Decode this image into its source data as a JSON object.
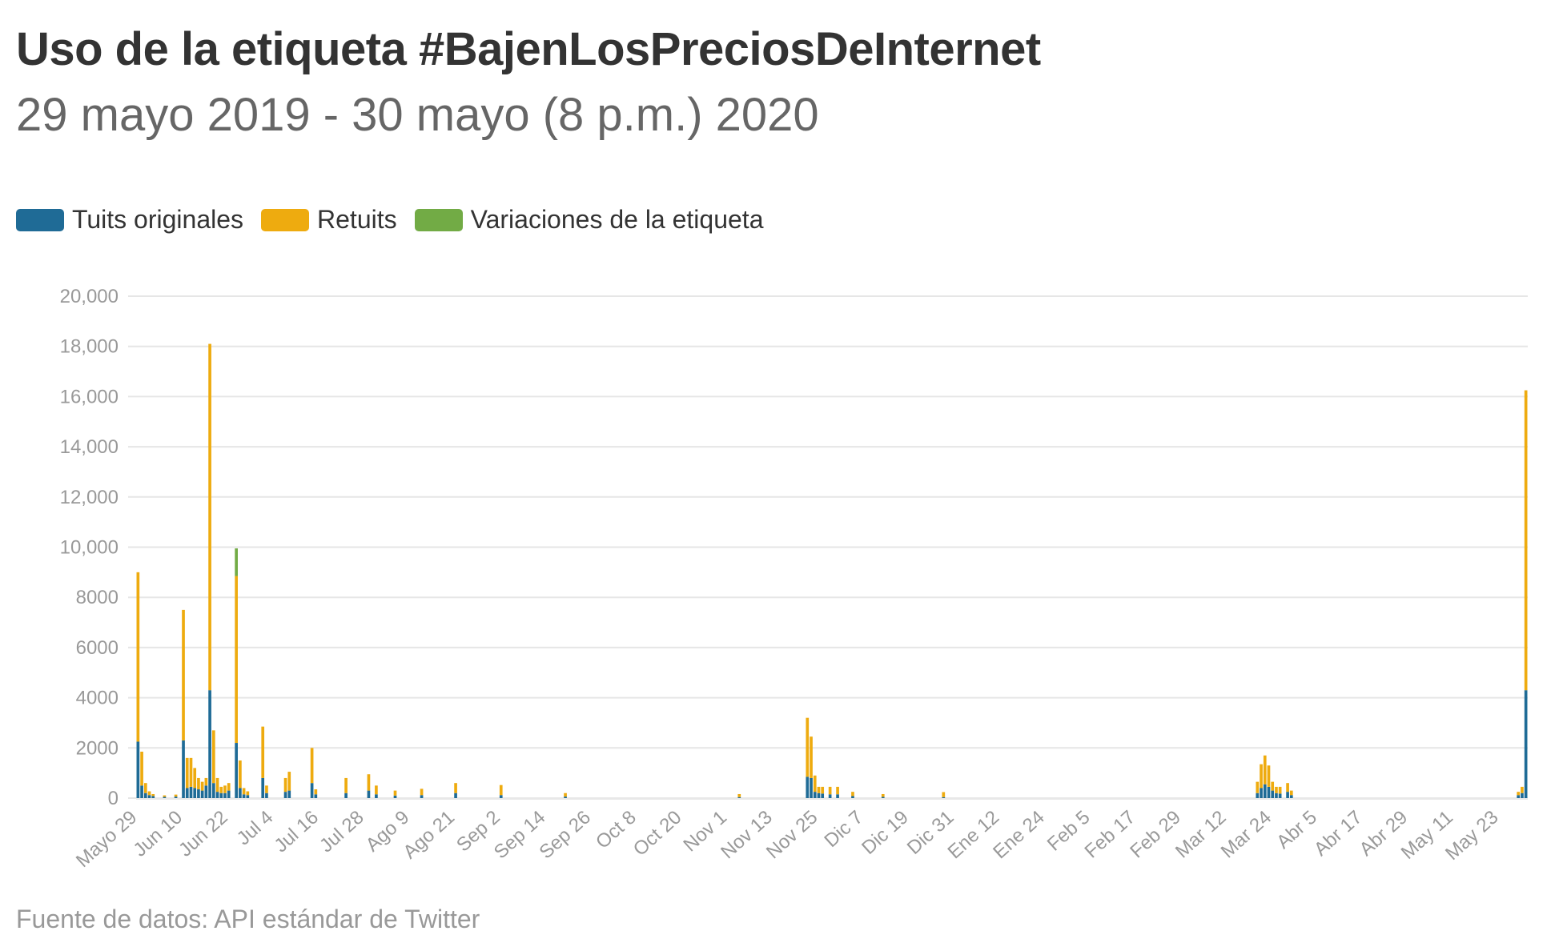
{
  "title": "Uso de la etiqueta #BajenLosPreciosDeInternet",
  "subtitle": "29 mayo 2019 - 30 mayo (8 p.m.) 2020",
  "source": "Fuente de datos: API estándar de Twitter",
  "colors": {
    "originales": "#1f6b96",
    "retuits": "#eeab0f",
    "variaciones": "#72ab45",
    "grid": "#e6e6e6",
    "tick_text": "#999999"
  },
  "chart_data": {
    "type": "bar",
    "stacked": true,
    "title": "Uso de la etiqueta #BajenLosPreciosDeInternet",
    "subtitle": "29 mayo 2019 - 30 mayo (8 p.m.) 2020",
    "legend_position": "top-left",
    "grid": true,
    "ylim": [
      0,
      20000
    ],
    "y_ticks": [
      "0",
      "2000",
      "4000",
      "6000",
      "8000",
      "10,000",
      "12,000",
      "14,000",
      "16,000",
      "18,000",
      "20,000"
    ],
    "y_tick_values": [
      0,
      2000,
      4000,
      6000,
      8000,
      10000,
      12000,
      14000,
      16000,
      18000,
      20000
    ],
    "x_start": "2019-05-29",
    "x_end": "2020-05-30",
    "x_ticks": [
      "Mayo 29",
      "Jun 10",
      "Jun 22",
      "Jul 4",
      "Jul 16",
      "Jul 28",
      "Ago 9",
      "Ago 21",
      "Sep 2",
      "Sep 14",
      "Sep 26",
      "Oct 8",
      "Oct 20",
      "Nov 1",
      "Nov 13",
      "Nov 25",
      "Dic 7",
      "Dic 19",
      "Dic 31",
      "Ene 12",
      "Ene 24",
      "Feb 5",
      "Feb 17",
      "Feb 29",
      "Mar 12",
      "Mar 24",
      "Abr 5",
      "Abr 17",
      "Abr 29",
      "May 11",
      "May 23"
    ],
    "series": [
      {
        "name": "Tuits originales",
        "color": "#1f6b96",
        "values": [
          [
            "2019-05-29",
            2250
          ],
          [
            "2019-05-30",
            500
          ],
          [
            "2019-05-31",
            200
          ],
          [
            "2019-06-01",
            120
          ],
          [
            "2019-06-02",
            80
          ],
          [
            "2019-06-05",
            50
          ],
          [
            "2019-06-08",
            60
          ],
          [
            "2019-06-10",
            2300
          ],
          [
            "2019-06-11",
            400
          ],
          [
            "2019-06-12",
            450
          ],
          [
            "2019-06-13",
            400
          ],
          [
            "2019-06-14",
            350
          ],
          [
            "2019-06-15",
            300
          ],
          [
            "2019-06-16",
            500
          ],
          [
            "2019-06-17",
            4300
          ],
          [
            "2019-06-18",
            600
          ],
          [
            "2019-06-19",
            250
          ],
          [
            "2019-06-20",
            200
          ],
          [
            "2019-06-21",
            200
          ],
          [
            "2019-06-22",
            300
          ],
          [
            "2019-06-24",
            2200
          ],
          [
            "2019-06-25",
            400
          ],
          [
            "2019-06-26",
            150
          ],
          [
            "2019-06-27",
            120
          ],
          [
            "2019-07-01",
            800
          ],
          [
            "2019-07-02",
            200
          ],
          [
            "2019-07-07",
            250
          ],
          [
            "2019-07-08",
            300
          ],
          [
            "2019-07-14",
            600
          ],
          [
            "2019-07-15",
            150
          ],
          [
            "2019-07-23",
            200
          ],
          [
            "2019-07-29",
            300
          ],
          [
            "2019-07-31",
            150
          ],
          [
            "2019-08-05",
            100
          ],
          [
            "2019-08-12",
            120
          ],
          [
            "2019-08-21",
            200
          ],
          [
            "2019-09-02",
            120
          ],
          [
            "2019-09-19",
            60
          ],
          [
            "2019-11-04",
            40
          ],
          [
            "2019-11-22",
            850
          ],
          [
            "2019-11-23",
            800
          ],
          [
            "2019-11-24",
            250
          ],
          [
            "2019-11-25",
            200
          ],
          [
            "2019-11-26",
            180
          ],
          [
            "2019-11-28",
            150
          ],
          [
            "2019-11-30",
            150
          ],
          [
            "2019-12-04",
            80
          ],
          [
            "2019-12-12",
            50
          ],
          [
            "2019-12-28",
            40
          ],
          [
            "2020-03-20",
            200
          ],
          [
            "2020-03-21",
            400
          ],
          [
            "2020-03-22",
            550
          ],
          [
            "2020-03-23",
            450
          ],
          [
            "2020-03-24",
            300
          ],
          [
            "2020-03-25",
            200
          ],
          [
            "2020-03-26",
            180
          ],
          [
            "2020-03-28",
            250
          ],
          [
            "2020-03-29",
            120
          ],
          [
            "2020-05-28",
            120
          ],
          [
            "2020-05-29",
            200
          ],
          [
            "2020-05-30",
            4300
          ]
        ]
      },
      {
        "name": "Retuits",
        "color": "#eeab0f",
        "values": [
          [
            "2019-05-29",
            6750
          ],
          [
            "2019-05-30",
            1350
          ],
          [
            "2019-05-31",
            400
          ],
          [
            "2019-06-01",
            150
          ],
          [
            "2019-06-02",
            80
          ],
          [
            "2019-06-05",
            60
          ],
          [
            "2019-06-08",
            80
          ],
          [
            "2019-06-10",
            5200
          ],
          [
            "2019-06-11",
            1200
          ],
          [
            "2019-06-12",
            1150
          ],
          [
            "2019-06-13",
            800
          ],
          [
            "2019-06-14",
            450
          ],
          [
            "2019-06-15",
            350
          ],
          [
            "2019-06-16",
            300
          ],
          [
            "2019-06-17",
            13800
          ],
          [
            "2019-06-18",
            2100
          ],
          [
            "2019-06-19",
            550
          ],
          [
            "2019-06-20",
            250
          ],
          [
            "2019-06-21",
            300
          ],
          [
            "2019-06-22",
            300
          ],
          [
            "2019-06-24",
            6650
          ],
          [
            "2019-06-25",
            1100
          ],
          [
            "2019-06-26",
            250
          ],
          [
            "2019-06-27",
            150
          ],
          [
            "2019-07-01",
            2050
          ],
          [
            "2019-07-02",
            300
          ],
          [
            "2019-07-07",
            550
          ],
          [
            "2019-07-08",
            750
          ],
          [
            "2019-07-14",
            1400
          ],
          [
            "2019-07-15",
            200
          ],
          [
            "2019-07-23",
            600
          ],
          [
            "2019-07-29",
            650
          ],
          [
            "2019-07-31",
            350
          ],
          [
            "2019-08-05",
            200
          ],
          [
            "2019-08-12",
            250
          ],
          [
            "2019-08-21",
            400
          ],
          [
            "2019-09-02",
            400
          ],
          [
            "2019-09-19",
            140
          ],
          [
            "2019-11-04",
            120
          ],
          [
            "2019-11-22",
            2350
          ],
          [
            "2019-11-23",
            1650
          ],
          [
            "2019-11-24",
            650
          ],
          [
            "2019-11-25",
            250
          ],
          [
            "2019-11-26",
            270
          ],
          [
            "2019-11-28",
            300
          ],
          [
            "2019-11-30",
            300
          ],
          [
            "2019-12-04",
            170
          ],
          [
            "2019-12-12",
            110
          ],
          [
            "2019-12-28",
            200
          ],
          [
            "2020-03-20",
            450
          ],
          [
            "2020-03-21",
            950
          ],
          [
            "2020-03-22",
            1150
          ],
          [
            "2020-03-23",
            850
          ],
          [
            "2020-03-24",
            350
          ],
          [
            "2020-03-25",
            250
          ],
          [
            "2020-03-26",
            270
          ],
          [
            "2020-03-28",
            350
          ],
          [
            "2020-03-29",
            180
          ],
          [
            "2020-05-28",
            130
          ],
          [
            "2020-05-29",
            250
          ],
          [
            "2020-05-30",
            11950
          ]
        ]
      },
      {
        "name": "Variaciones de la etiqueta",
        "color": "#72ab45",
        "values": [
          [
            "2019-06-24",
            1100
          ]
        ]
      }
    ]
  }
}
